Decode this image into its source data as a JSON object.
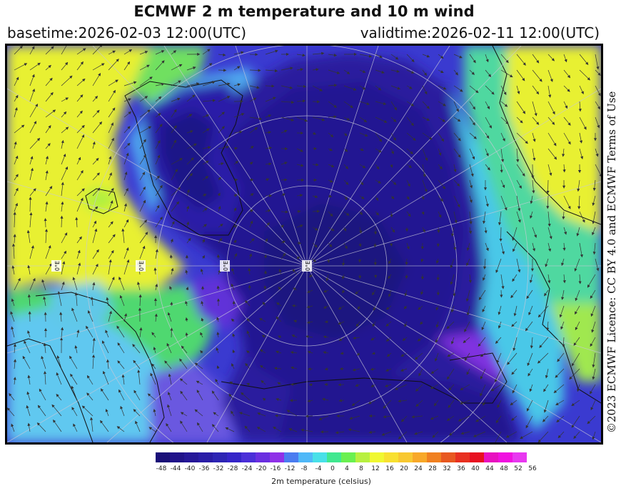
{
  "header": {
    "title": "ECMWF 2 m temperature and 10 m wind",
    "basetime": "basetime:2026-02-03 12:00(UTC)",
    "validtime": "validtime:2026-02-11 12:00(UTC)"
  },
  "credit": "©2023 ECMWF Licence: CC BY 4.0 and ECMWF Terms of Use",
  "grid_labels": [
    "0°E",
    "0°E",
    "0°E",
    "0°E"
  ],
  "legend": {
    "label": "2m temperature (celsius)",
    "ticks": [
      "-48",
      "-44",
      "-40",
      "-36",
      "-32",
      "-28",
      "-24",
      "-20",
      "-16",
      "-12",
      "-8",
      "-4",
      "0",
      "4",
      "8",
      "12",
      "16",
      "20",
      "24",
      "28",
      "32",
      "36",
      "40",
      "44",
      "48",
      "52",
      "56"
    ],
    "colors": [
      "#1a0f78",
      "#20128a",
      "#251798",
      "#291ca6",
      "#2d24b4",
      "#3524c8",
      "#4a2ed8",
      "#6a2ee0",
      "#8f30e8",
      "#4a7cf0",
      "#4fb8f8",
      "#48e0e8",
      "#40e890",
      "#6af050",
      "#b8f040",
      "#f0f830",
      "#f8e030",
      "#f8c830",
      "#f8a828",
      "#f08020",
      "#e85820",
      "#e83020",
      "#e81020",
      "#e810c0",
      "#f010e0",
      "#e838f0"
    ]
  }
}
